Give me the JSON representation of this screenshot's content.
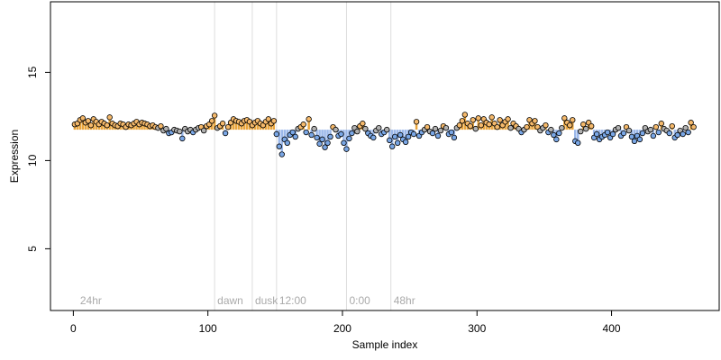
{
  "chart_data": {
    "type": "scatter",
    "title": "",
    "xlabel": "Sample index",
    "ylabel": "Expression",
    "xlim": [
      -17,
      480
    ],
    "ylim": [
      1.5,
      19.0
    ],
    "x_ticks": [
      0,
      100,
      200,
      300,
      400
    ],
    "y_ticks": [
      5,
      10,
      15
    ],
    "baseline": 11.75,
    "grid": false,
    "legend": "none",
    "colors": {
      "above_baseline": "#f5b96b",
      "below_baseline": "#7aa7e6",
      "stem_above": "#e9a53c",
      "stem_below": "#9bb8ea",
      "marker_edge": "#000000",
      "marker_neutral": "#b0b0b0",
      "vline": "#dddddd",
      "annotation": "#aaaaaa",
      "axis": "#000000"
    },
    "vlines": [
      {
        "x": 105,
        "label": "dawn"
      },
      {
        "x": 133,
        "label": "dusk"
      },
      {
        "x": 151,
        "label": "12:00"
      },
      {
        "x": 203,
        "label": "0:00"
      },
      {
        "x": 236,
        "label": "48hr"
      }
    ],
    "corner_label": {
      "x": 3,
      "label": "24hr"
    },
    "points": [
      [
        1,
        12.05
      ],
      [
        3,
        12.1
      ],
      [
        5,
        12.3
      ],
      [
        7,
        12.4
      ],
      [
        9,
        12.15
      ],
      [
        11,
        12.25
      ],
      [
        13,
        12.0
      ],
      [
        15,
        12.35
      ],
      [
        17,
        12.2
      ],
      [
        19,
        12.05
      ],
      [
        21,
        12.2
      ],
      [
        23,
        12.1
      ],
      [
        25,
        12.0
      ],
      [
        27,
        12.45
      ],
      [
        29,
        12.1
      ],
      [
        31,
        12.0
      ],
      [
        33,
        11.95
      ],
      [
        35,
        12.1
      ],
      [
        37,
        12.05
      ],
      [
        39,
        11.9
      ],
      [
        41,
        12.05
      ],
      [
        43,
        12.0
      ],
      [
        45,
        12.1
      ],
      [
        47,
        12.2
      ],
      [
        49,
        12.05
      ],
      [
        51,
        12.15
      ],
      [
        53,
        12.1
      ],
      [
        55,
        12.05
      ],
      [
        57,
        11.95
      ],
      [
        59,
        12.0
      ],
      [
        61,
        11.9
      ],
      [
        63,
        11.85
      ],
      [
        65,
        11.95
      ],
      [
        67,
        11.7
      ],
      [
        69,
        11.8
      ],
      [
        71,
        11.55
      ],
      [
        73,
        11.6
      ],
      [
        75,
        11.75
      ],
      [
        77,
        11.7
      ],
      [
        79,
        11.65
      ],
      [
        81,
        11.25
      ],
      [
        83,
        11.8
      ],
      [
        85,
        11.65
      ],
      [
        87,
        11.75
      ],
      [
        89,
        11.6
      ],
      [
        91,
        11.75
      ],
      [
        93,
        11.85
      ],
      [
        95,
        11.9
      ],
      [
        97,
        11.7
      ],
      [
        99,
        11.95
      ],
      [
        101,
        12.05
      ],
      [
        103,
        12.25
      ],
      [
        105,
        12.55
      ],
      [
        107,
        11.85
      ],
      [
        109,
        11.95
      ],
      [
        111,
        12.1
      ],
      [
        113,
        11.55
      ],
      [
        115,
        11.9
      ],
      [
        117,
        12.15
      ],
      [
        119,
        12.35
      ],
      [
        121,
        12.25
      ],
      [
        123,
        12.2
      ],
      [
        125,
        12.1
      ],
      [
        127,
        12.25
      ],
      [
        129,
        12.3
      ],
      [
        131,
        12.2
      ],
      [
        133,
        12.0
      ],
      [
        135,
        12.15
      ],
      [
        137,
        12.25
      ],
      [
        139,
        12.1
      ],
      [
        141,
        12.0
      ],
      [
        143,
        12.2
      ],
      [
        145,
        12.35
      ],
      [
        147,
        12.1
      ],
      [
        149,
        12.25
      ],
      [
        151,
        11.5
      ],
      [
        153,
        10.8
      ],
      [
        155,
        10.35
      ],
      [
        157,
        11.2
      ],
      [
        159,
        11.0
      ],
      [
        161,
        11.45
      ],
      [
        163,
        11.6
      ],
      [
        165,
        11.35
      ],
      [
        167,
        11.8
      ],
      [
        169,
        11.9
      ],
      [
        171,
        12.05
      ],
      [
        173,
        11.6
      ],
      [
        175,
        12.35
      ],
      [
        177,
        11.45
      ],
      [
        179,
        11.8
      ],
      [
        181,
        11.3
      ],
      [
        183,
        10.95
      ],
      [
        185,
        11.2
      ],
      [
        187,
        10.75
      ],
      [
        189,
        11.0
      ],
      [
        191,
        11.35
      ],
      [
        193,
        11.9
      ],
      [
        195,
        11.75
      ],
      [
        197,
        11.4
      ],
      [
        199,
        11.5
      ],
      [
        201,
        11.0
      ],
      [
        203,
        10.65
      ],
      [
        205,
        11.25
      ],
      [
        207,
        11.55
      ],
      [
        209,
        11.85
      ],
      [
        211,
        11.65
      ],
      [
        213,
        11.95
      ],
      [
        215,
        12.1
      ],
      [
        217,
        11.8
      ],
      [
        219,
        11.55
      ],
      [
        221,
        11.4
      ],
      [
        223,
        11.3
      ],
      [
        225,
        11.7
      ],
      [
        227,
        11.85
      ],
      [
        229,
        11.5
      ],
      [
        231,
        11.6
      ],
      [
        233,
        11.75
      ],
      [
        235,
        11.15
      ],
      [
        237,
        10.8
      ],
      [
        239,
        11.35
      ],
      [
        241,
        11.0
      ],
      [
        243,
        11.45
      ],
      [
        245,
        11.2
      ],
      [
        247,
        11.05
      ],
      [
        249,
        11.35
      ],
      [
        251,
        11.6
      ],
      [
        253,
        11.5
      ],
      [
        255,
        12.2
      ],
      [
        257,
        11.4
      ],
      [
        259,
        11.6
      ],
      [
        261,
        11.75
      ],
      [
        263,
        11.9
      ],
      [
        265,
        11.65
      ],
      [
        267,
        11.55
      ],
      [
        269,
        11.8
      ],
      [
        271,
        11.4
      ],
      [
        273,
        11.7
      ],
      [
        275,
        11.95
      ],
      [
        277,
        11.85
      ],
      [
        279,
        11.5
      ],
      [
        281,
        11.6
      ],
      [
        283,
        11.3
      ],
      [
        285,
        11.85
      ],
      [
        287,
        12.0
      ],
      [
        289,
        12.25
      ],
      [
        291,
        12.6
      ],
      [
        293,
        12.1
      ],
      [
        295,
        11.95
      ],
      [
        297,
        12.3
      ],
      [
        299,
        11.8
      ],
      [
        301,
        12.4
      ],
      [
        303,
        12.0
      ],
      [
        305,
        12.35
      ],
      [
        307,
        12.15
      ],
      [
        309,
        12.05
      ],
      [
        311,
        12.45
      ],
      [
        313,
        12.1
      ],
      [
        315,
        11.9
      ],
      [
        317,
        12.3
      ],
      [
        319,
        12.0
      ],
      [
        321,
        12.2
      ],
      [
        323,
        12.35
      ],
      [
        325,
        11.85
      ],
      [
        327,
        12.1
      ],
      [
        329,
        11.95
      ],
      [
        331,
        11.8
      ],
      [
        333,
        11.6
      ],
      [
        335,
        11.75
      ],
      [
        337,
        11.9
      ],
      [
        339,
        12.3
      ],
      [
        341,
        12.1
      ],
      [
        343,
        12.25
      ],
      [
        345,
        11.9
      ],
      [
        347,
        11.7
      ],
      [
        349,
        11.85
      ],
      [
        351,
        12.0
      ],
      [
        353,
        11.6
      ],
      [
        355,
        11.75
      ],
      [
        357,
        11.45
      ],
      [
        359,
        11.2
      ],
      [
        361,
        11.55
      ],
      [
        363,
        11.85
      ],
      [
        365,
        12.4
      ],
      [
        367,
        12.15
      ],
      [
        369,
        12.0
      ],
      [
        371,
        12.3
      ],
      [
        373,
        11.1
      ],
      [
        375,
        11.0
      ],
      [
        377,
        11.65
      ],
      [
        379,
        12.05
      ],
      [
        381,
        11.8
      ],
      [
        383,
        12.15
      ],
      [
        385,
        11.95
      ],
      [
        387,
        11.3
      ],
      [
        389,
        11.5
      ],
      [
        391,
        11.2
      ],
      [
        393,
        11.35
      ],
      [
        395,
        11.45
      ],
      [
        397,
        11.6
      ],
      [
        399,
        11.3
      ],
      [
        401,
        11.5
      ],
      [
        403,
        11.75
      ],
      [
        405,
        11.85
      ],
      [
        407,
        11.4
      ],
      [
        409,
        11.55
      ],
      [
        411,
        11.9
      ],
      [
        413,
        11.7
      ],
      [
        415,
        11.35
      ],
      [
        417,
        11.1
      ],
      [
        419,
        11.4
      ],
      [
        421,
        11.2
      ],
      [
        423,
        11.55
      ],
      [
        425,
        11.85
      ],
      [
        427,
        11.65
      ],
      [
        429,
        11.75
      ],
      [
        431,
        11.4
      ],
      [
        433,
        11.9
      ],
      [
        435,
        11.6
      ],
      [
        437,
        12.1
      ],
      [
        439,
        11.8
      ],
      [
        441,
        11.7
      ],
      [
        443,
        11.55
      ],
      [
        445,
        11.95
      ],
      [
        447,
        11.3
      ],
      [
        449,
        11.45
      ],
      [
        451,
        11.7
      ],
      [
        453,
        11.5
      ],
      [
        455,
        11.85
      ],
      [
        457,
        11.6
      ],
      [
        459,
        12.15
      ],
      [
        461,
        11.9
      ]
    ]
  }
}
